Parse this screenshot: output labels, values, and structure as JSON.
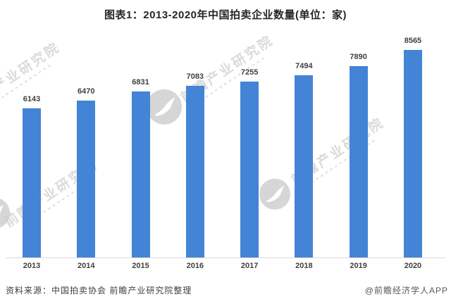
{
  "title": "图表1：2013-2020年中国拍卖企业数量(单位：家)",
  "source_note": "资料来源：中国拍卖协会 前瞻产业研究院整理",
  "credit": "@前瞻经济学人APP",
  "watermark": {
    "text": "前瞻产业研究院",
    "logo_icon": "qianzhan-circle-logo"
  },
  "colors": {
    "bar": "#4384d6",
    "axis_line": "#d9d9d9",
    "label_text": "#404040",
    "title_text": "#262626",
    "watermark": "#d7d7d7"
  },
  "chart_data": {
    "type": "bar",
    "title": "图表1：2013-2020年中国拍卖企业数量(单位：家)",
    "categories": [
      "2013",
      "2014",
      "2015",
      "2016",
      "2017",
      "2018",
      "2019",
      "2020"
    ],
    "values": [
      6143,
      6470,
      6831,
      7083,
      7255,
      7494,
      7890,
      8565
    ],
    "xlabel": "",
    "ylabel": "",
    "unit": "家",
    "ylim": [
      0,
      10000
    ],
    "grid": false,
    "legend": "none",
    "data_labels": true,
    "bar_color": "#4384d6"
  }
}
